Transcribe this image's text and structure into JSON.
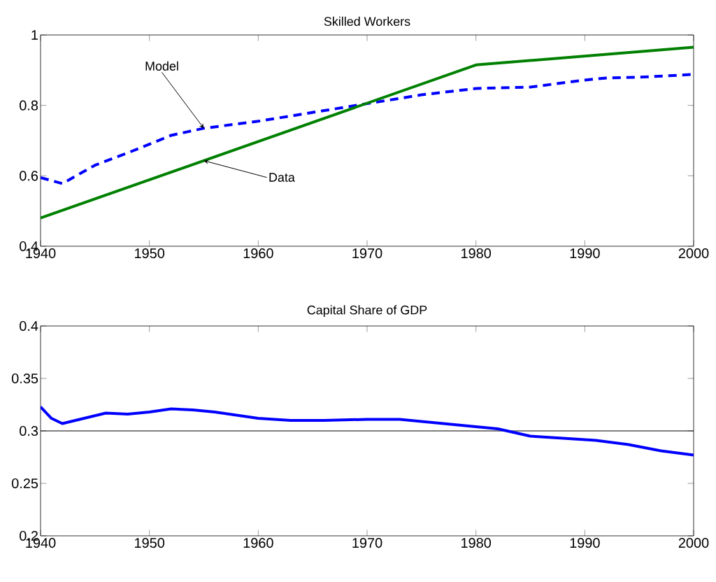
{
  "chart_data": [
    {
      "type": "line",
      "title": "Skilled Workers",
      "xlim": [
        1940,
        2000
      ],
      "xticks": [
        1940,
        1950,
        1960,
        1970,
        1980,
        1990,
        2000
      ],
      "ylim": [
        0.4,
        1
      ],
      "yticks": [
        0.4,
        0.6,
        0.8,
        1
      ],
      "grid": false,
      "legend": false,
      "series": [
        {
          "name": "Model",
          "color": "#0000ff",
          "line_style": "dashed",
          "x": [
            1940,
            1942,
            1945,
            1948,
            1950,
            1952,
            1955,
            1960,
            1965,
            1970,
            1975,
            1980,
            1985,
            1990,
            1992,
            1995,
            2000
          ],
          "values": [
            0.595,
            0.578,
            0.63,
            0.665,
            0.69,
            0.715,
            0.735,
            0.755,
            0.78,
            0.805,
            0.83,
            0.848,
            0.852,
            0.872,
            0.878,
            0.88,
            0.888
          ]
        },
        {
          "name": "Data",
          "color": "#008000",
          "line_style": "solid",
          "x": [
            1940,
            1980,
            2000
          ],
          "values": [
            0.48,
            0.915,
            0.965
          ]
        }
      ]
    },
    {
      "type": "line",
      "title": "Capital Share of GDP",
      "xlim": [
        1940,
        2000
      ],
      "xticks": [
        1940,
        1950,
        1960,
        1970,
        1980,
        1990,
        2000
      ],
      "ylim": [
        0.2,
        0.4
      ],
      "yticks": [
        0.2,
        0.25,
        0.3,
        0.35,
        0.4
      ],
      "grid": false,
      "legend": false,
      "ref_lines": [
        {
          "axis": "y",
          "value": 0.3,
          "color": "#000000"
        }
      ],
      "series": [
        {
          "color": "#0000ff",
          "line_style": "solid",
          "x": [
            1940,
            1941,
            1942,
            1944,
            1946,
            1948,
            1950,
            1952,
            1954,
            1956,
            1958,
            1960,
            1963,
            1966,
            1970,
            1973,
            1976,
            1980,
            1982,
            1985,
            1988,
            1991,
            1994,
            1997,
            2000
          ],
          "values": [
            0.323,
            0.312,
            0.307,
            0.312,
            0.317,
            0.316,
            0.318,
            0.321,
            0.32,
            0.318,
            0.315,
            0.312,
            0.31,
            0.31,
            0.311,
            0.311,
            0.308,
            0.304,
            0.302,
            0.295,
            0.293,
            0.291,
            0.287,
            0.281,
            0.277
          ]
        }
      ]
    }
  ]
}
